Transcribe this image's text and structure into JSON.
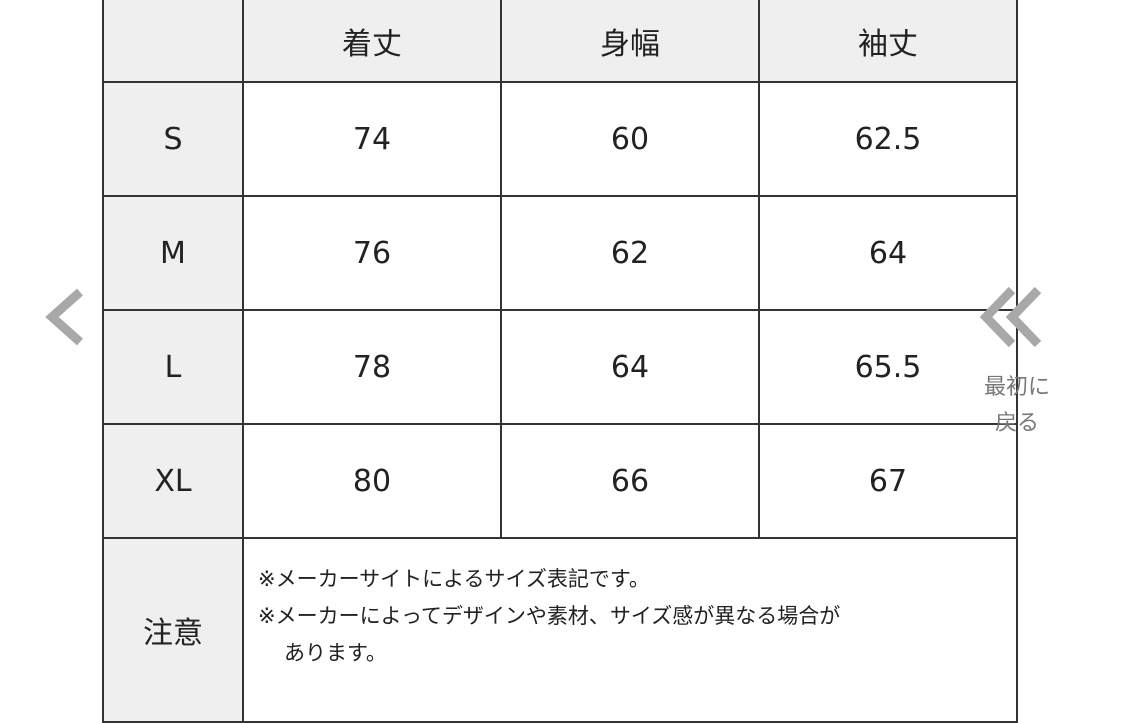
{
  "table": {
    "headers": [
      "",
      "着丈",
      "身幅",
      "袖丈"
    ],
    "rows": [
      {
        "size": "S",
        "values": [
          "74",
          "60",
          "62.5"
        ]
      },
      {
        "size": "M",
        "values": [
          "76",
          "62",
          "64"
        ]
      },
      {
        "size": "L",
        "values": [
          "78",
          "64",
          "65.5"
        ]
      },
      {
        "size": "XL",
        "values": [
          "80",
          "66",
          "67"
        ]
      }
    ],
    "note": {
      "label": "注意",
      "line1": "※メーカーサイトによるサイズ表記です。",
      "line2": "※メーカーによってデザインや素材、サイズ感が異なる場合が",
      "line3": "あります。"
    }
  },
  "nav": {
    "prev_icon": "chevron-left-icon",
    "first_icon": "double-chevron-left-icon",
    "first_label_line1": "最初に",
    "first_label_line2": "戻る"
  },
  "colors": {
    "header_bg": "#efefef",
    "border": "#333333",
    "nav_gray": "#a8a8a8"
  }
}
